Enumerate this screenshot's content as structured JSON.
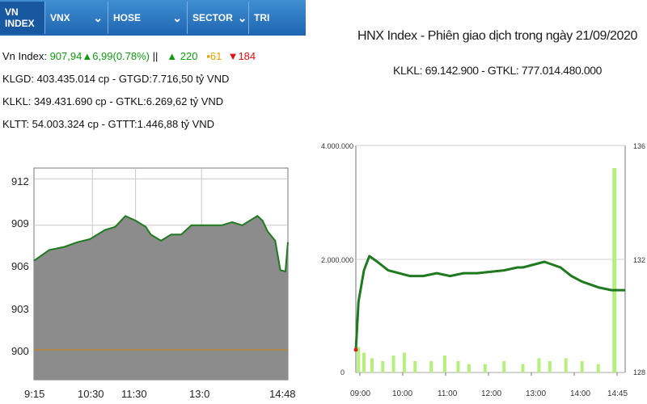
{
  "tabs": [
    {
      "label": "VN INDEX",
      "dropdown": false,
      "active": true
    },
    {
      "label": "VNX",
      "dropdown": true
    },
    {
      "label": "HOSE",
      "dropdown": true
    },
    {
      "label": "SECTOR",
      "dropdown": true
    },
    {
      "label": "TRI",
      "dropdown": false
    }
  ],
  "index_info": {
    "label": "Vn Index:",
    "value": "907,94",
    "change": "▲6,99(0.78%)",
    "separator": "||",
    "advances": "▲ 220",
    "unchanged": "▪61",
    "declines": "▼184"
  },
  "stats": {
    "line1": "KLGD: 403.435.014 cp - GTGD:7.716,50 tỷ VND",
    "line2": "KLKL: 349.431.690 cp - GTKL:6.269,62 tỷ VND",
    "line3": "KLTT: 54.003.324 cp - GTTT:1.446,88 tỷ VND"
  },
  "colors": {
    "tab_bar": "#2a74c0",
    "line": "#1f7a1f",
    "area": "#8c8c8c",
    "reference": "#b8863b",
    "volume": "#b6ef7e"
  },
  "chart_data": [
    {
      "type": "area",
      "y_ticks": [
        "912",
        "909",
        "906",
        "903",
        "900"
      ],
      "x_ticks": [
        "9:15",
        "10:30",
        "11:30",
        "13:0",
        "14:48"
      ],
      "ylim": [
        899,
        912.7
      ],
      "reference_value": 900.95,
      "series": [
        {
          "x": [
            0,
            0.06,
            0.12,
            0.17,
            0.22,
            0.28,
            0.32,
            0.36,
            0.4,
            0.44,
            0.46,
            0.5,
            0.54,
            0.58,
            0.62,
            0.66,
            0.7,
            0.74,
            0.78,
            0.82,
            0.86,
            0.88,
            0.9,
            0.92,
            0.95,
            0.97,
            0.99,
            1.0
          ],
          "values": [
            906.7,
            907.4,
            907.6,
            907.9,
            908.1,
            908.7,
            908.9,
            909.6,
            909.3,
            908.9,
            908.4,
            908.0,
            908.4,
            908.4,
            909.0,
            909.0,
            909.0,
            909.0,
            909.2,
            909.0,
            909.4,
            909.6,
            909.3,
            908.6,
            908.0,
            906.1,
            906.0,
            907.9
          ]
        }
      ]
    },
    {
      "type": "line",
      "title": "HNX Index - Phiên giao dịch trong ngày 21/09/2020",
      "subtitle": "KLKL: 69.142.900 - GTKL: 777.014.480.000",
      "y_left_ticks": [
        "4.000.000",
        "2.000.000",
        "0"
      ],
      "y_right_ticks": [
        "136",
        "132",
        "128"
      ],
      "x_ticks": [
        "09:00",
        "10:00",
        "11:00",
        "12:00",
        "13:00",
        "14:00",
        "14:45"
      ],
      "right_ylim": [
        128,
        136
      ],
      "price_series": {
        "x": [
          0,
          0.01,
          0.03,
          0.05,
          0.08,
          0.12,
          0.16,
          0.2,
          0.25,
          0.3,
          0.35,
          0.4,
          0.45,
          0.55,
          0.6,
          0.62,
          0.66,
          0.7,
          0.76,
          0.8,
          0.84,
          0.87,
          0.9,
          0.95,
          1.0
        ],
        "values": [
          128.8,
          130.5,
          131.6,
          132.1,
          131.9,
          131.6,
          131.5,
          131.4,
          131.4,
          131.5,
          131.4,
          131.5,
          131.5,
          131.6,
          131.7,
          131.7,
          131.8,
          131.9,
          131.7,
          131.4,
          131.2,
          131.1,
          131.0,
          130.9,
          130.9
        ]
      },
      "volume_series": {
        "x": [
          0.01,
          0.03,
          0.06,
          0.1,
          0.14,
          0.18,
          0.22,
          0.28,
          0.33,
          0.38,
          0.42,
          0.48,
          0.55,
          0.62,
          0.68,
          0.72,
          0.78,
          0.84,
          0.9,
          0.96
        ],
        "values": [
          450000,
          350000,
          250000,
          200000,
          300000,
          350000,
          200000,
          200000,
          300000,
          200000,
          150000,
          150000,
          200000,
          150000,
          250000,
          200000,
          250000,
          200000,
          150000,
          3600000
        ]
      }
    }
  ]
}
